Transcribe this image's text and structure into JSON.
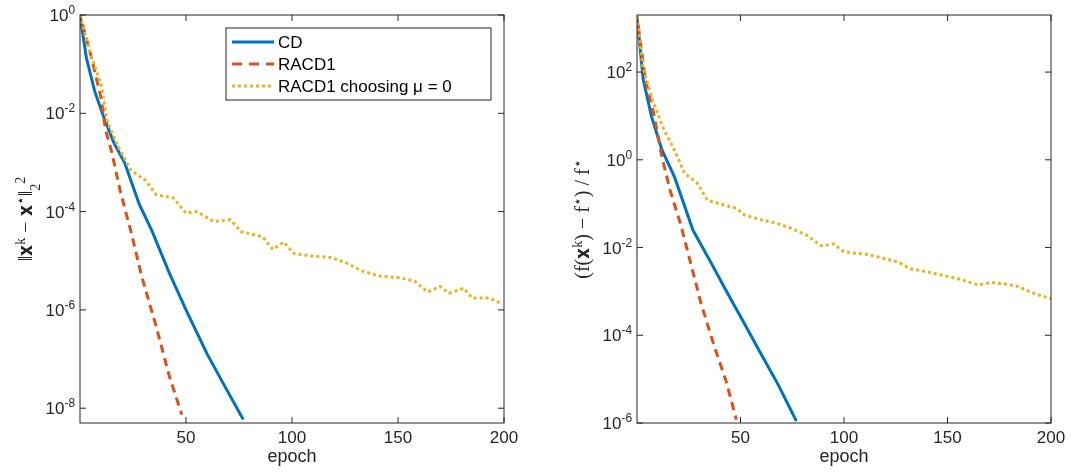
{
  "chart_data": [
    {
      "type": "line",
      "xlabel": "epoch",
      "ylabel": "‖𝐱$^{k}$ − 𝐱$^{⋆}$‖$_{2}$$^{2}$",
      "log": "y",
      "xlim": [
        0,
        200
      ],
      "xticks": [
        50,
        100,
        150,
        200
      ],
      "ylim": [
        5e-09,
        1
      ],
      "yticks": [
        {
          "value": 1,
          "label": "10$^{0}$"
        },
        {
          "value": 0.01,
          "label": "10$^{-2}$"
        },
        {
          "value": 0.0001,
          "label": "10$^{-4}$"
        },
        {
          "value": 1e-06,
          "label": "10$^{-6}$"
        },
        {
          "value": 1e-08,
          "label": "10$^{-8}$"
        }
      ],
      "grid": false,
      "legend": "top right",
      "series": [
        {
          "name": "CD",
          "color": "#0072bd",
          "line_style": "solid",
          "x": [
            0,
            3,
            7,
            11,
            16,
            21,
            28,
            34,
            42,
            50,
            60,
            68,
            77
          ],
          "values": [
            1,
            0.135,
            0.0275,
            0.0089,
            0.0025,
            0.001,
            0.00014,
            4e-05,
            5.8e-06,
            1e-06,
            1.26e-07,
            2.95e-08,
            5.9e-09
          ]
        },
        {
          "name": "RACD1",
          "color": "#d95319",
          "line_style": "dashed",
          "x": [
            0,
            5,
            10,
            12,
            15,
            19,
            24,
            29,
            36,
            42,
            48
          ],
          "values": [
            1,
            0.158,
            0.02,
            0.0047,
            0.0016,
            0.00026,
            4e-05,
            5e-06,
            4.5e-07,
            4.7e-08,
            7.4e-09
          ]
        },
        {
          "name": "RACD1 choosing μ = 0",
          "color": "#edb120",
          "line_style": "dotted",
          "x": [
            0,
            5,
            10,
            13,
            18,
            24,
            31,
            36,
            44,
            50,
            55,
            63,
            71,
            76,
            86,
            91,
            96,
            101,
            109,
            118,
            125,
            133,
            141,
            151,
            158,
            164,
            170,
            174,
            181,
            185,
            193,
            199
          ],
          "values": [
            1,
            0.158,
            0.038,
            0.0065,
            0.0021,
            0.00069,
            0.00043,
            0.00022,
            0.00019,
            9.3e-05,
            0.0001,
            6.3e-05,
            6.8e-05,
            3.9e-05,
            3.1e-05,
            1.7e-05,
            2.4e-05,
            1.4e-05,
            1.26e-05,
            1.17e-05,
            9.3e-06,
            6.2e-06,
            4.9e-06,
            4.5e-06,
            3.8e-06,
            2.3e-06,
            3e-06,
            2.2e-06,
            2.75e-06,
            1.74e-06,
            1.74e-06,
            1.35e-06
          ]
        }
      ]
    },
    {
      "type": "line",
      "xlabel": "epoch",
      "ylabel": "(f(𝐱$^{k}$) − f$^{⋆}$) / f$^{⋆}$",
      "log": "y",
      "xlim": [
        0,
        200
      ],
      "xticks": [
        50,
        100,
        150,
        200
      ],
      "ylim": [
        1e-06,
        2000
      ],
      "yticks": [
        {
          "value": 100,
          "label": "10$^{2}$"
        },
        {
          "value": 1,
          "label": "10$^{0}$"
        },
        {
          "value": 0.01,
          "label": "10$^{-2}$"
        },
        {
          "value": 0.0001,
          "label": "10$^{-4}$"
        },
        {
          "value": 1e-06,
          "label": "10$^{-6}$"
        }
      ],
      "grid": false,
      "legend": false,
      "series": [
        {
          "color": "#0072bd",
          "line_style": "solid",
          "x": [
            0,
            3,
            7,
            12,
            18,
            27,
            36,
            43,
            52,
            60,
            68,
            77
          ],
          "values": [
            1860,
            68,
            9.8,
            1.7,
            0.42,
            0.025,
            0.0043,
            0.00105,
            0.00018,
            3.7e-05,
            7.8e-06,
            1.1e-06
          ]
        },
        {
          "color": "#d95319",
          "line_style": "dashed",
          "x": [
            0,
            4,
            8,
            12,
            16,
            21,
            26,
            31,
            37,
            43,
            48
          ],
          "values": [
            1860,
            68,
            11.7,
            1.2,
            0.2,
            0.035,
            0.0043,
            0.00052,
            6.3e-05,
            9.1e-06,
            1.2e-06
          ]
        },
        {
          "color": "#edb120",
          "line_style": "dotted",
          "x": [
            0,
            3,
            8,
            13,
            18,
            23,
            29,
            34,
            42,
            48,
            52,
            60,
            68,
            74,
            82,
            89,
            95,
            100,
            110,
            116,
            126,
            132,
            140,
            148,
            156,
            165,
            171,
            177,
            184,
            192,
            200
          ],
          "values": [
            1860,
            115,
            20,
            4.9,
            1.7,
            0.49,
            0.3,
            0.12,
            0.093,
            0.078,
            0.055,
            0.043,
            0.035,
            0.028,
            0.019,
            0.011,
            0.012,
            0.0079,
            0.0071,
            0.0062,
            0.0047,
            0.0033,
            0.0028,
            0.0023,
            0.0019,
            0.0014,
            0.0016,
            0.0015,
            0.0013,
            0.00089,
            0.00068
          ]
        }
      ]
    }
  ]
}
